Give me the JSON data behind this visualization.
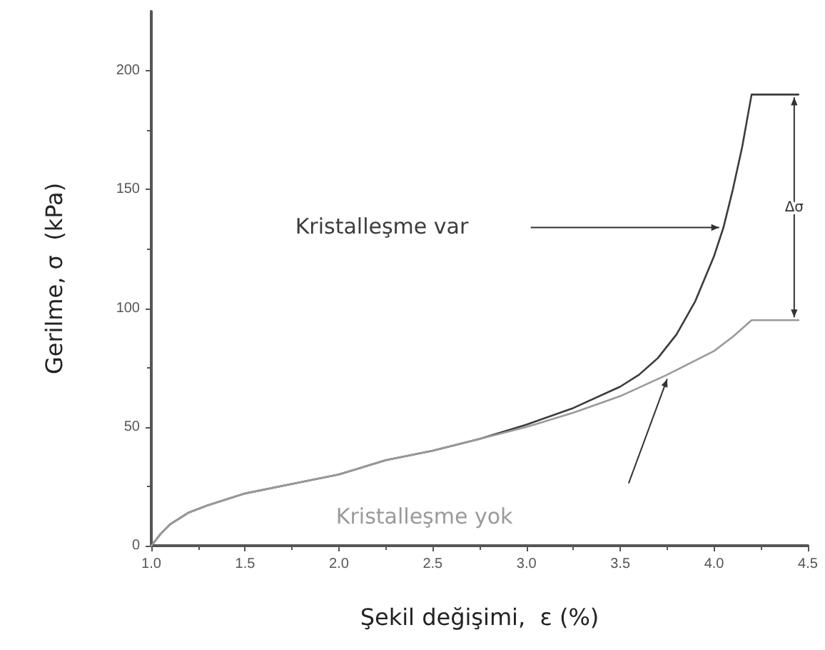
{
  "chart_data": {
    "type": "line",
    "xlabel": "Şekil değişimi,  ε (%)",
    "ylabel": "Gerilme, σ  (kPa)",
    "series": [
      {
        "name": "Kristalleşme var",
        "color": "#3c3c3c",
        "x": [
          1.0,
          1.05,
          1.1,
          1.2,
          1.3,
          1.5,
          1.75,
          2.0,
          2.25,
          2.5,
          2.75,
          3.0,
          3.25,
          3.5,
          3.6,
          3.7,
          3.8,
          3.9,
          4.0,
          4.05,
          4.1,
          4.15,
          4.2,
          4.45
        ],
        "values": [
          0,
          5,
          9,
          14,
          17,
          22,
          26,
          30,
          36,
          40,
          45,
          51,
          58,
          67,
          72,
          79,
          89,
          103,
          122,
          134,
          150,
          168,
          190,
          190
        ]
      },
      {
        "name": "Kristalleşme yok",
        "color": "#9a9a9a",
        "x": [
          1.0,
          1.05,
          1.1,
          1.2,
          1.3,
          1.5,
          1.75,
          2.0,
          2.25,
          2.5,
          2.75,
          3.0,
          3.25,
          3.5,
          3.75,
          4.0,
          4.1,
          4.2,
          4.45
        ],
        "values": [
          0,
          5,
          9,
          14,
          17,
          22,
          26,
          30,
          36,
          40,
          45,
          50,
          56,
          63,
          72,
          82,
          88,
          95,
          95
        ]
      }
    ],
    "annotations": [
      "Δσ"
    ],
    "xlim": [
      1.0,
      4.5
    ],
    "ylim": [
      0,
      225
    ],
    "xticks": [
      {
        "value": 1,
        "label": "1.0"
      },
      1.5,
      {
        "value": 2,
        "label": "2.0"
      },
      2.5,
      {
        "value": 3,
        "label": "3.0"
      },
      3.5,
      {
        "value": 4,
        "label": "4.0"
      },
      4.5
    ],
    "yticks": [
      0,
      50,
      100,
      150,
      200
    ],
    "grid": false,
    "legend": false,
    "marker": "none",
    "line_style": "solid"
  }
}
